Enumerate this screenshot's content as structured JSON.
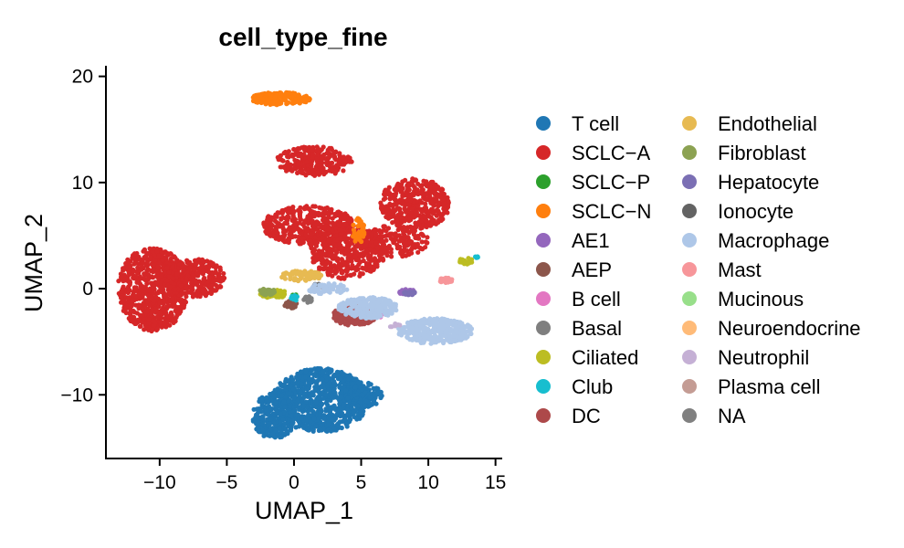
{
  "chart_data": {
    "type": "scatter",
    "title": "cell_type_fine",
    "xlabel": "UMAP_1",
    "ylabel": "UMAP_2",
    "xlim": [
      -14,
      15.5
    ],
    "ylim": [
      -16,
      21
    ],
    "x_ticks": [
      -10,
      -5,
      0,
      5,
      10,
      15
    ],
    "y_ticks": [
      -10,
      0,
      10,
      20
    ],
    "x_tick_labels": [
      "−10",
      "−5",
      "0",
      "5",
      "10",
      "15"
    ],
    "y_tick_labels": [
      "−10",
      "0",
      "10",
      "20"
    ],
    "grid": false,
    "legend_position": "right",
    "legend_columns": 2,
    "series": [
      {
        "name": "T cell",
        "color": "#1f77b4",
        "clusters": [
          {
            "cx": 2.0,
            "cy": -10.5,
            "rx": 3.6,
            "ry": 3.0,
            "n": 900
          },
          {
            "cx": -1.5,
            "cy": -12.0,
            "rx": 1.6,
            "ry": 2.2,
            "n": 250
          },
          {
            "cx": 5.0,
            "cy": -10.0,
            "rx": 1.6,
            "ry": 1.2,
            "n": 150
          }
        ]
      },
      {
        "name": "SCLC−A",
        "color": "#d62728",
        "clusters": [
          {
            "cx": -10.5,
            "cy": 0.0,
            "rx": 2.6,
            "ry": 4.0,
            "n": 700
          },
          {
            "cx": -7.5,
            "cy": 1.0,
            "rx": 2.4,
            "ry": 1.8,
            "n": 350
          },
          {
            "cx": 1.5,
            "cy": 12.0,
            "rx": 2.8,
            "ry": 1.4,
            "n": 260
          },
          {
            "cx": 1.0,
            "cy": 6.0,
            "rx": 3.5,
            "ry": 1.8,
            "n": 400
          },
          {
            "cx": 4.0,
            "cy": 3.5,
            "rx": 2.8,
            "ry": 2.6,
            "n": 400
          },
          {
            "cx": 9.0,
            "cy": 8.0,
            "rx": 2.6,
            "ry": 2.4,
            "n": 400
          },
          {
            "cx": 7.5,
            "cy": 4.5,
            "rx": 2.5,
            "ry": 1.5,
            "n": 200
          }
        ]
      },
      {
        "name": "SCLC−P",
        "color": "#2ca02c",
        "clusters": [
          {
            "cx": 0.0,
            "cy": -0.8,
            "rx": 0.3,
            "ry": 0.3,
            "n": 6
          }
        ]
      },
      {
        "name": "SCLC−N",
        "color": "#ff7f0e",
        "clusters": [
          {
            "cx": -1.0,
            "cy": 17.9,
            "rx": 2.2,
            "ry": 0.6,
            "n": 160
          },
          {
            "cx": 4.8,
            "cy": 5.5,
            "rx": 0.5,
            "ry": 1.2,
            "n": 40
          }
        ]
      },
      {
        "name": "AE1",
        "color": "#9467bd",
        "clusters": [
          {
            "cx": 8.4,
            "cy": -0.3,
            "rx": 0.6,
            "ry": 0.25,
            "n": 40
          }
        ]
      },
      {
        "name": "AEP",
        "color": "#8c564b",
        "clusters": [
          {
            "cx": -0.2,
            "cy": -1.5,
            "rx": 0.5,
            "ry": 0.35,
            "n": 30
          }
        ]
      },
      {
        "name": "B cell",
        "color": "#e377c2",
        "clusters": [
          {
            "cx": 6.2,
            "cy": -2.3,
            "rx": 0.5,
            "ry": 0.5,
            "n": 50
          }
        ]
      },
      {
        "name": "Basal",
        "color": "#7f7f7f",
        "clusters": [
          {
            "cx": 1.0,
            "cy": -1.0,
            "rx": 0.4,
            "ry": 0.3,
            "n": 20
          }
        ]
      },
      {
        "name": "Ciliated",
        "color": "#bcbd22",
        "clusters": [
          {
            "cx": -1.5,
            "cy": -0.5,
            "rx": 1.0,
            "ry": 0.4,
            "n": 50
          },
          {
            "cx": 12.8,
            "cy": 2.6,
            "rx": 0.5,
            "ry": 0.3,
            "n": 20
          }
        ]
      },
      {
        "name": "Club",
        "color": "#17becf",
        "clusters": [
          {
            "cx": 0.0,
            "cy": -0.9,
            "rx": 0.3,
            "ry": 0.3,
            "n": 10
          },
          {
            "cx": 13.6,
            "cy": 2.9,
            "rx": 0.2,
            "ry": 0.15,
            "n": 5
          }
        ]
      },
      {
        "name": "DC",
        "color": "#ad494a",
        "clusters": [
          {
            "cx": 4.5,
            "cy": -2.5,
            "rx": 1.6,
            "ry": 1.0,
            "n": 220
          }
        ]
      },
      {
        "name": "Endothelial",
        "color": "#e7ba52",
        "clusters": [
          {
            "cx": 0.5,
            "cy": 1.2,
            "rx": 1.6,
            "ry": 0.5,
            "n": 70
          }
        ]
      },
      {
        "name": "Fibroblast",
        "color": "#8ca252",
        "clusters": [
          {
            "cx": -2.0,
            "cy": -0.3,
            "rx": 0.6,
            "ry": 0.3,
            "n": 30
          }
        ]
      },
      {
        "name": "Hepatocyte",
        "color": "#7b6fb4",
        "clusters": [
          {
            "cx": 8.6,
            "cy": -0.4,
            "rx": 0.4,
            "ry": 0.2,
            "n": 20
          }
        ]
      },
      {
        "name": "Ionocyte",
        "color": "#636363",
        "clusters": [
          {
            "cx": 1.8,
            "cy": 0.3,
            "rx": 0.3,
            "ry": 0.2,
            "n": 8
          }
        ]
      },
      {
        "name": "Macrophage",
        "color": "#aec7e8",
        "clusters": [
          {
            "cx": 10.5,
            "cy": -4.0,
            "rx": 2.8,
            "ry": 1.2,
            "n": 350
          },
          {
            "cx": 5.5,
            "cy": -1.8,
            "rx": 2.2,
            "ry": 1.0,
            "n": 250
          },
          {
            "cx": 2.5,
            "cy": 0.0,
            "rx": 1.5,
            "ry": 0.5,
            "n": 60
          }
        ]
      },
      {
        "name": "Mast",
        "color": "#f7969a",
        "clusters": [
          {
            "cx": 11.3,
            "cy": 0.8,
            "rx": 0.5,
            "ry": 0.25,
            "n": 30
          }
        ]
      },
      {
        "name": "Mucinous",
        "color": "#98df8a",
        "clusters": []
      },
      {
        "name": "Neuroendocrine",
        "color": "#ffbb78",
        "clusters": []
      },
      {
        "name": "Neutrophil",
        "color": "#c5b0d5",
        "clusters": [
          {
            "cx": 7.5,
            "cy": -3.5,
            "rx": 0.4,
            "ry": 0.2,
            "n": 6
          }
        ]
      },
      {
        "name": "Plasma cell",
        "color": "#c49c94",
        "clusters": []
      },
      {
        "name": "NA",
        "color": "#808080",
        "clusters": []
      }
    ]
  }
}
